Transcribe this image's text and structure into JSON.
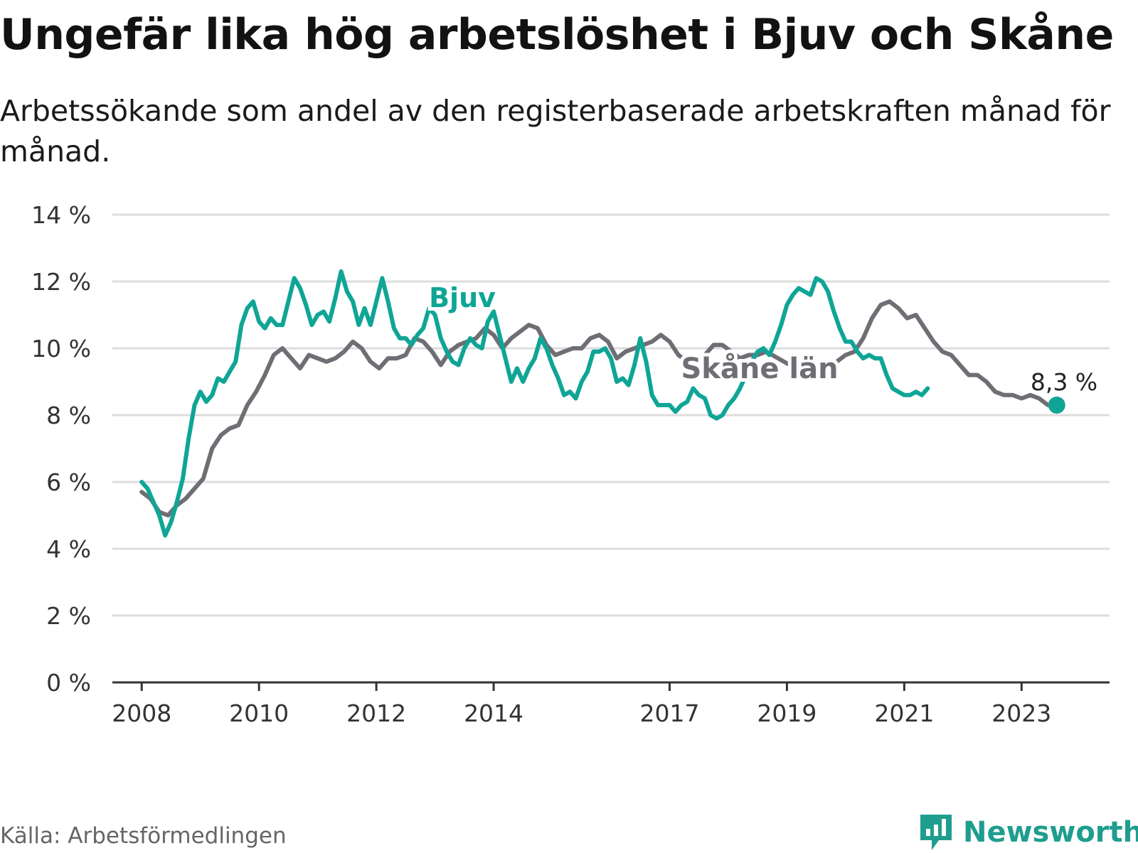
{
  "title": "Ungefär lika hög arbetslöshet i Bjuv och Skåne",
  "subtitle": "Arbetssökande som andel av den registerbaserade arbetskraften månad för månad.",
  "source": "Källa: Arbetsförmedlingen",
  "brand": "Newsworthy",
  "colors": {
    "bjuv": "#0fa596",
    "skane": "#6f6e74",
    "grid": "#dddddd",
    "axis": "#333333",
    "brand": "#1f9d8e"
  },
  "chart_data": {
    "type": "line",
    "title": "Ungefär lika hög arbetslöshet i Bjuv och Skåne",
    "xlabel": "",
    "ylabel": "",
    "xlim": [
      2007.5,
      2024.5
    ],
    "ylim": [
      0,
      14
    ],
    "yticks": [
      0,
      2,
      4,
      6,
      8,
      10,
      12,
      14
    ],
    "ytick_labels": [
      "0 %",
      "2 %",
      "4 %",
      "6 %",
      "8 %",
      "10 %",
      "12 %",
      "14 %"
    ],
    "xticks": [
      2008,
      2010,
      2012,
      2014,
      2017,
      2019,
      2021,
      2023
    ],
    "xtick_labels": [
      "2008",
      "2010",
      "2012",
      "2014",
      "2017",
      "2019",
      "2021",
      "2023"
    ],
    "series": [
      {
        "name": "Skåne län",
        "label": "Skåne län",
        "color": "#6f6e74",
        "points": [
          [
            2008.0,
            5.7
          ],
          [
            2008.15,
            5.5
          ],
          [
            2008.3,
            5.1
          ],
          [
            2008.45,
            5.0
          ],
          [
            2008.6,
            5.3
          ],
          [
            2008.75,
            5.5
          ],
          [
            2008.9,
            5.8
          ],
          [
            2009.05,
            6.1
          ],
          [
            2009.2,
            7.0
          ],
          [
            2009.35,
            7.4
          ],
          [
            2009.5,
            7.6
          ],
          [
            2009.65,
            7.7
          ],
          [
            2009.8,
            8.3
          ],
          [
            2009.95,
            8.7
          ],
          [
            2010.1,
            9.2
          ],
          [
            2010.25,
            9.8
          ],
          [
            2010.4,
            10.0
          ],
          [
            2010.55,
            9.7
          ],
          [
            2010.7,
            9.4
          ],
          [
            2010.85,
            9.8
          ],
          [
            2011.0,
            9.7
          ],
          [
            2011.15,
            9.6
          ],
          [
            2011.3,
            9.7
          ],
          [
            2011.45,
            9.9
          ],
          [
            2011.6,
            10.2
          ],
          [
            2011.75,
            10.0
          ],
          [
            2011.9,
            9.6
          ],
          [
            2012.05,
            9.4
          ],
          [
            2012.2,
            9.7
          ],
          [
            2012.35,
            9.7
          ],
          [
            2012.5,
            9.8
          ],
          [
            2012.65,
            10.3
          ],
          [
            2012.8,
            10.2
          ],
          [
            2012.95,
            9.9
          ],
          [
            2013.1,
            9.5
          ],
          [
            2013.25,
            9.9
          ],
          [
            2013.4,
            10.1
          ],
          [
            2013.55,
            10.2
          ],
          [
            2013.7,
            10.3
          ],
          [
            2013.85,
            10.6
          ],
          [
            2014.0,
            10.4
          ],
          [
            2014.15,
            10.0
          ],
          [
            2014.3,
            10.3
          ],
          [
            2014.45,
            10.5
          ],
          [
            2014.6,
            10.7
          ],
          [
            2014.75,
            10.6
          ],
          [
            2014.9,
            10.1
          ],
          [
            2015.05,
            9.8
          ],
          [
            2015.2,
            9.9
          ],
          [
            2015.35,
            10.0
          ],
          [
            2015.5,
            10.0
          ],
          [
            2015.65,
            10.3
          ],
          [
            2015.8,
            10.4
          ],
          [
            2015.95,
            10.2
          ],
          [
            2016.1,
            9.7
          ],
          [
            2016.25,
            9.9
          ],
          [
            2016.4,
            10.0
          ],
          [
            2016.55,
            10.1
          ],
          [
            2016.7,
            10.2
          ],
          [
            2016.85,
            10.4
          ],
          [
            2017.0,
            10.2
          ],
          [
            2017.15,
            9.8
          ],
          [
            2017.3,
            9.6
          ],
          [
            2017.45,
            9.7
          ],
          [
            2017.6,
            9.8
          ],
          [
            2017.75,
            10.1
          ],
          [
            2017.9,
            10.1
          ],
          [
            2018.05,
            9.9
          ],
          [
            2018.2,
            9.7
          ],
          [
            2018.35,
            9.8
          ],
          [
            2018.5,
            9.8
          ],
          [
            2018.65,
            9.9
          ],
          [
            2019.25,
            9.3
          ],
          [
            2019.4,
            9.2
          ],
          [
            2019.55,
            9.3
          ],
          [
            2019.7,
            9.4
          ],
          [
            2019.85,
            9.6
          ],
          [
            2020.0,
            9.8
          ],
          [
            2020.15,
            9.9
          ],
          [
            2020.3,
            10.3
          ],
          [
            2020.45,
            10.9
          ],
          [
            2020.6,
            11.3
          ],
          [
            2020.75,
            11.4
          ],
          [
            2020.9,
            11.2
          ],
          [
            2021.05,
            10.9
          ],
          [
            2021.2,
            11.0
          ],
          [
            2021.35,
            10.6
          ],
          [
            2021.5,
            10.2
          ],
          [
            2021.65,
            9.9
          ],
          [
            2021.8,
            9.8
          ],
          [
            2021.95,
            9.5
          ],
          [
            2022.1,
            9.2
          ],
          [
            2022.25,
            9.2
          ],
          [
            2022.4,
            9.0
          ],
          [
            2022.55,
            8.7
          ],
          [
            2022.7,
            8.6
          ],
          [
            2022.85,
            8.6
          ],
          [
            2023.0,
            8.5
          ],
          [
            2023.15,
            8.6
          ],
          [
            2023.3,
            8.5
          ],
          [
            2023.45,
            8.3
          ],
          [
            2023.6,
            8.3
          ]
        ]
      },
      {
        "name": "Bjuv",
        "label": "Bjuv",
        "color": "#0fa596",
        "last_label": "8,3 %",
        "points": [
          [
            2008.0,
            6.0
          ],
          [
            2008.1,
            5.8
          ],
          [
            2008.2,
            5.4
          ],
          [
            2008.3,
            5.0
          ],
          [
            2008.4,
            4.4
          ],
          [
            2008.5,
            4.8
          ],
          [
            2008.6,
            5.4
          ],
          [
            2008.7,
            6.1
          ],
          [
            2008.8,
            7.3
          ],
          [
            2008.9,
            8.3
          ],
          [
            2009.0,
            8.7
          ],
          [
            2009.1,
            8.4
          ],
          [
            2009.2,
            8.6
          ],
          [
            2009.3,
            9.1
          ],
          [
            2009.4,
            9.0
          ],
          [
            2009.5,
            9.3
          ],
          [
            2009.6,
            9.6
          ],
          [
            2009.7,
            10.7
          ],
          [
            2009.8,
            11.2
          ],
          [
            2009.9,
            11.4
          ],
          [
            2010.0,
            10.8
          ],
          [
            2010.1,
            10.6
          ],
          [
            2010.2,
            10.9
          ],
          [
            2010.3,
            10.7
          ],
          [
            2010.4,
            10.7
          ],
          [
            2010.5,
            11.4
          ],
          [
            2010.6,
            12.1
          ],
          [
            2010.7,
            11.8
          ],
          [
            2010.8,
            11.3
          ],
          [
            2010.9,
            10.7
          ],
          [
            2011.0,
            11.0
          ],
          [
            2011.1,
            11.1
          ],
          [
            2011.2,
            10.8
          ],
          [
            2011.3,
            11.5
          ],
          [
            2011.4,
            12.3
          ],
          [
            2011.5,
            11.7
          ],
          [
            2011.6,
            11.4
          ],
          [
            2011.7,
            10.7
          ],
          [
            2011.8,
            11.2
          ],
          [
            2011.9,
            10.7
          ],
          [
            2012.0,
            11.4
          ],
          [
            2012.1,
            12.1
          ],
          [
            2012.2,
            11.4
          ],
          [
            2012.3,
            10.6
          ],
          [
            2012.4,
            10.3
          ],
          [
            2012.5,
            10.3
          ],
          [
            2012.6,
            10.1
          ],
          [
            2012.7,
            10.4
          ],
          [
            2012.8,
            10.6
          ],
          [
            2012.9,
            11.2
          ],
          [
            2013.0,
            11.0
          ],
          [
            2013.1,
            10.3
          ],
          [
            2013.2,
            9.9
          ],
          [
            2013.3,
            9.6
          ],
          [
            2013.4,
            9.5
          ],
          [
            2013.5,
            10.0
          ],
          [
            2013.6,
            10.3
          ],
          [
            2013.7,
            10.1
          ],
          [
            2013.8,
            10.0
          ],
          [
            2013.9,
            10.8
          ],
          [
            2014.0,
            11.1
          ],
          [
            2014.1,
            10.4
          ],
          [
            2014.2,
            9.7
          ],
          [
            2014.3,
            9.0
          ],
          [
            2014.4,
            9.4
          ],
          [
            2014.5,
            9.0
          ],
          [
            2014.6,
            9.4
          ],
          [
            2014.7,
            9.7
          ],
          [
            2014.8,
            10.3
          ],
          [
            2014.9,
            10.0
          ],
          [
            2015.0,
            9.5
          ],
          [
            2015.1,
            9.1
          ],
          [
            2015.2,
            8.6
          ],
          [
            2015.3,
            8.7
          ],
          [
            2015.4,
            8.5
          ],
          [
            2015.5,
            9.0
          ],
          [
            2015.6,
            9.3
          ],
          [
            2015.7,
            9.9
          ],
          [
            2015.8,
            9.9
          ],
          [
            2015.9,
            10.0
          ],
          [
            2016.0,
            9.7
          ],
          [
            2016.1,
            9.0
          ],
          [
            2016.2,
            9.1
          ],
          [
            2016.3,
            8.9
          ],
          [
            2016.4,
            9.5
          ],
          [
            2016.5,
            10.3
          ],
          [
            2016.6,
            9.6
          ],
          [
            2016.7,
            8.6
          ],
          [
            2016.8,
            8.3
          ],
          [
            2016.9,
            8.3
          ],
          [
            2017.0,
            8.3
          ],
          [
            2017.1,
            8.1
          ],
          [
            2017.2,
            8.3
          ],
          [
            2017.3,
            8.4
          ],
          [
            2017.4,
            8.8
          ],
          [
            2017.5,
            8.6
          ],
          [
            2017.6,
            8.5
          ],
          [
            2017.7,
            8.0
          ],
          [
            2017.8,
            7.9
          ],
          [
            2017.9,
            8.0
          ],
          [
            2018.0,
            8.3
          ],
          [
            2018.1,
            8.5
          ],
          [
            2018.2,
            8.8
          ],
          [
            2018.3,
            9.2
          ],
          [
            2018.4,
            9.6
          ],
          [
            2018.5,
            9.9
          ],
          [
            2018.6,
            10.0
          ],
          [
            2018.7,
            9.8
          ],
          [
            2018.8,
            10.2
          ],
          [
            2018.9,
            10.7
          ],
          [
            2019.0,
            11.3
          ],
          [
            2019.1,
            11.6
          ],
          [
            2019.2,
            11.8
          ],
          [
            2019.3,
            11.7
          ],
          [
            2019.4,
            11.6
          ],
          [
            2019.5,
            12.1
          ],
          [
            2019.6,
            12.0
          ],
          [
            2019.7,
            11.7
          ],
          [
            2019.8,
            11.1
          ],
          [
            2019.9,
            10.6
          ],
          [
            2020.0,
            10.2
          ],
          [
            2020.1,
            10.2
          ],
          [
            2020.2,
            9.9
          ],
          [
            2020.3,
            9.7
          ],
          [
            2020.4,
            9.8
          ],
          [
            2020.5,
            9.7
          ],
          [
            2020.6,
            9.7
          ],
          [
            2020.7,
            9.2
          ],
          [
            2020.8,
            8.8
          ],
          [
            2020.9,
            8.7
          ],
          [
            2021.0,
            8.6
          ],
          [
            2021.1,
            8.6
          ],
          [
            2021.2,
            8.7
          ],
          [
            2021.3,
            8.6
          ],
          [
            2021.4,
            8.8
          ]
        ]
      }
    ]
  }
}
